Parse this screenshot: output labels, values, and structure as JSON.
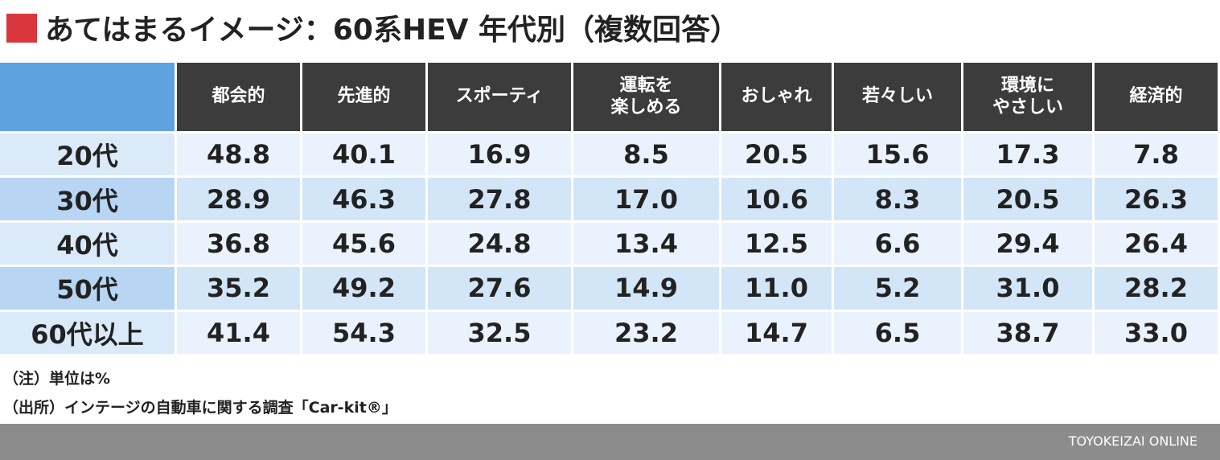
{
  "header": {
    "title": "あてはまるイメージ：60系HEV 年代別（複数回答）"
  },
  "table": {
    "columns": [
      "都会的",
      "先進的",
      "スポーティ",
      "運転を\n楽しめる",
      "おしゃれ",
      "若々しい",
      "環境に\nやさしい",
      "経済的"
    ],
    "row_labels": [
      "20代",
      "30代",
      "40代",
      "50代",
      "60代以上"
    ],
    "rows": [
      [
        "48.8",
        "40.1",
        "16.9",
        "8.5",
        "20.5",
        "15.6",
        "17.3",
        "7.8"
      ],
      [
        "28.9",
        "46.3",
        "27.8",
        "17.0",
        "10.6",
        "8.3",
        "20.5",
        "26.3"
      ],
      [
        "36.8",
        "45.6",
        "24.8",
        "13.4",
        "12.5",
        "6.6",
        "29.4",
        "26.4"
      ],
      [
        "35.2",
        "49.2",
        "27.6",
        "14.9",
        "11.0",
        "5.2",
        "31.0",
        "28.2"
      ],
      [
        "41.4",
        "54.3",
        "32.5",
        "23.2",
        "14.7",
        "6.5",
        "38.7",
        "33.0"
      ]
    ]
  },
  "notes": [
    "（注）単位は%",
    "（出所）インテージの自動車に関する調査「Car-kit®」"
  ],
  "footer": {
    "brand": "TOYOKEIZAI ONLINE"
  }
}
